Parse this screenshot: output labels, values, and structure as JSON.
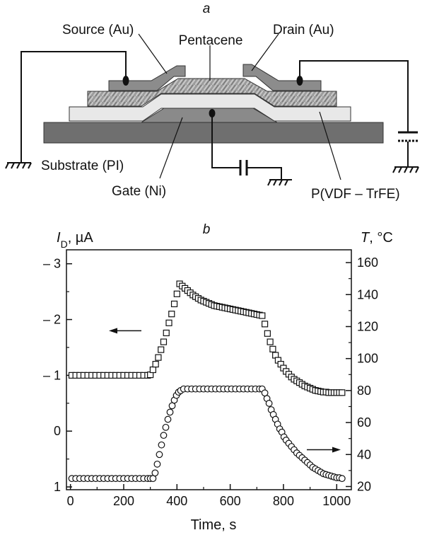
{
  "panel_a": {
    "letter": "a",
    "labels": {
      "source": "Source (Au)",
      "pentacene": "Pentacene",
      "drain": "Drain (Au)",
      "substrate": "Substrate (PI)",
      "gate": "Gate (Ni)",
      "dielectric": "P(VDF – TrFE)"
    }
  },
  "chart_data": {
    "type": "scatter",
    "letter": "b",
    "xlabel": "Time, s",
    "ylabel_left": "I_D, µA",
    "ylabel_left_main": "I",
    "ylabel_left_sub": "D",
    "ylabel_left_unit": ", µA",
    "ylabel_right_main": "T",
    "ylabel_right_unit": ", °C",
    "xlim": [
      -15,
      1055
    ],
    "ylim_left": [
      1.05,
      -3.25
    ],
    "ylim_right": [
      18,
      168
    ],
    "x_ticks": [
      0,
      200,
      400,
      600,
      800,
      1000
    ],
    "x_tick_labels": [
      "0",
      "200",
      "400",
      "600",
      "800",
      "1000"
    ],
    "y_left_ticks": [
      -3,
      -2,
      -1,
      0,
      1
    ],
    "y_left_tick_labels": [
      "– 3",
      "– 2",
      "– 1",
      "0",
      "1"
    ],
    "y_right_ticks": [
      20,
      40,
      60,
      80,
      100,
      120,
      140,
      160
    ],
    "y_right_tick_labels": [
      "20",
      "40",
      "60",
      "80",
      "100",
      "120",
      "140",
      "160"
    ],
    "series": [
      {
        "axis": "left",
        "marker": "square",
        "arrow": "left",
        "x": [
          5,
          20,
          35,
          50,
          65,
          80,
          95,
          110,
          125,
          140,
          155,
          170,
          185,
          200,
          215,
          230,
          245,
          260,
          275,
          290,
          300,
          310,
          320,
          330,
          340,
          350,
          360,
          370,
          380,
          390,
          400,
          410,
          420,
          430,
          440,
          450,
          460,
          470,
          480,
          490,
          500,
          510,
          520,
          530,
          540,
          550,
          560,
          570,
          580,
          590,
          600,
          610,
          620,
          630,
          640,
          650,
          660,
          670,
          680,
          690,
          700,
          710,
          720,
          730,
          740,
          750,
          760,
          770,
          780,
          790,
          800,
          810,
          820,
          830,
          840,
          850,
          860,
          870,
          880,
          890,
          900,
          910,
          920,
          930,
          940,
          950,
          960,
          970,
          980,
          990,
          1000,
          1010,
          1020
        ],
        "y": [
          -1,
          -1,
          -1,
          -1,
          -1,
          -1,
          -1,
          -1,
          -1,
          -1,
          -1,
          -1,
          -1,
          -1,
          -1,
          -1,
          -1,
          -1,
          -1,
          -1,
          -1.01,
          -1.1,
          -1.2,
          -1.32,
          -1.46,
          -1.6,
          -1.76,
          -1.94,
          -2.1,
          -2.28,
          -2.46,
          -2.64,
          -2.6,
          -2.56,
          -2.52,
          -2.48,
          -2.44,
          -2.41,
          -2.38,
          -2.35,
          -2.33,
          -2.31,
          -2.29,
          -2.27,
          -2.25,
          -2.24,
          -2.23,
          -2.22,
          -2.21,
          -2.2,
          -2.19,
          -2.18,
          -2.17,
          -2.16,
          -2.15,
          -2.14,
          -2.13,
          -2.12,
          -2.11,
          -2.1,
          -2.09,
          -2.08,
          -2.07,
          -1.92,
          -1.75,
          -1.6,
          -1.47,
          -1.36,
          -1.27,
          -1.2,
          -1.13,
          -1.07,
          -1.02,
          -0.97,
          -0.93,
          -0.9,
          -0.87,
          -0.84,
          -0.81,
          -0.79,
          -0.77,
          -0.75,
          -0.73,
          -0.72,
          -0.71,
          -0.7,
          -0.7,
          -0.69,
          -0.69,
          -0.69,
          -0.69,
          -0.69,
          -0.69
        ]
      },
      {
        "axis": "right",
        "marker": "circle",
        "arrow": "right",
        "x": [
          5,
          20,
          35,
          50,
          65,
          80,
          95,
          110,
          125,
          140,
          155,
          170,
          185,
          200,
          215,
          230,
          245,
          260,
          275,
          290,
          300,
          310,
          318,
          326,
          334,
          342,
          350,
          358,
          366,
          374,
          382,
          390,
          398,
          406,
          414,
          425,
          440,
          455,
          470,
          485,
          500,
          515,
          530,
          545,
          560,
          575,
          590,
          605,
          620,
          635,
          650,
          665,
          680,
          695,
          710,
          720,
          730,
          738,
          746,
          754,
          762,
          770,
          778,
          786,
          794,
          802,
          810,
          820,
          830,
          840,
          850,
          860,
          870,
          880,
          890,
          900,
          910,
          920,
          930,
          940,
          950,
          960,
          970,
          980,
          990,
          1000,
          1010,
          1020
        ],
        "y": [
          25,
          25,
          25,
          25,
          25,
          25,
          25,
          25,
          25,
          25,
          25,
          25,
          25,
          25,
          25,
          25,
          25,
          25,
          25,
          25,
          25,
          25,
          28.5,
          34,
          40,
          46,
          52,
          57,
          62,
          66.5,
          70.5,
          74,
          77,
          79,
          80,
          81,
          81,
          81,
          81,
          81,
          81,
          81,
          81,
          81,
          81,
          81,
          81,
          81,
          81,
          81,
          81,
          81,
          81,
          81,
          81,
          81,
          78.5,
          75,
          72,
          68,
          65,
          62,
          59,
          56,
          54,
          51,
          49,
          47,
          45,
          43,
          41,
          39.5,
          38,
          36.5,
          35,
          33.5,
          32,
          31,
          30,
          29,
          28,
          27.5,
          27,
          26.5,
          26,
          25.5,
          25.5,
          25
        ]
      }
    ]
  }
}
